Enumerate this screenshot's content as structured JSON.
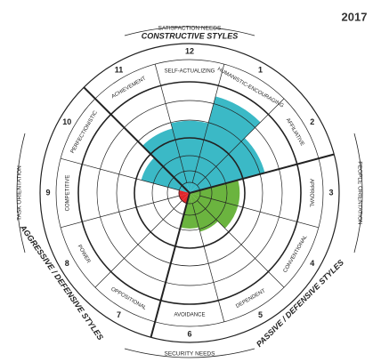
{
  "chart_data": {
    "type": "circumplex",
    "year": "2017",
    "categories": [
      "SELF-ACTUALIZING",
      "HUMANISTIC-ENCOURAGING",
      "AFFILIATIVE",
      "APPROVAL",
      "CONVENTIONAL",
      "DEPENDENT",
      "AVOIDANCE",
      "OPPOSITIONAL",
      "POWER",
      "COMPETITIVE",
      "PERFECTIONISTIC",
      "ACHIEVEMENT"
    ],
    "segment_numbers": [
      "12",
      "1",
      "2",
      "3",
      "4",
      "5",
      "6",
      "7",
      "8",
      "9",
      "10",
      "11"
    ],
    "values": [
      65,
      90,
      70,
      45,
      45,
      36,
      32,
      10,
      10,
      10,
      45,
      60
    ],
    "colors": [
      "#3bb9c6",
      "#3bb9c6",
      "#3bb9c6",
      "#6bb43f",
      "#6bb43f",
      "#6bb43f",
      "#6bb43f",
      "#e2262b",
      "#e2262b",
      "#e2262b",
      "#3bb9c6",
      "#3bb9c6"
    ],
    "rlim": [
      0,
      100
    ],
    "groups": [
      "CONSTRUCTIVE STYLES",
      "PASSIVE / DEFENSIVE STYLES",
      "AGGRESSIVE / DEFENSIVE STYLES"
    ],
    "needs": {
      "top": "SATISFACTION NEEDS",
      "bottom": "SECURITY NEEDS",
      "right": "PEOPLE ORIENTATION",
      "left": "TASK ORIENTATION"
    }
  }
}
